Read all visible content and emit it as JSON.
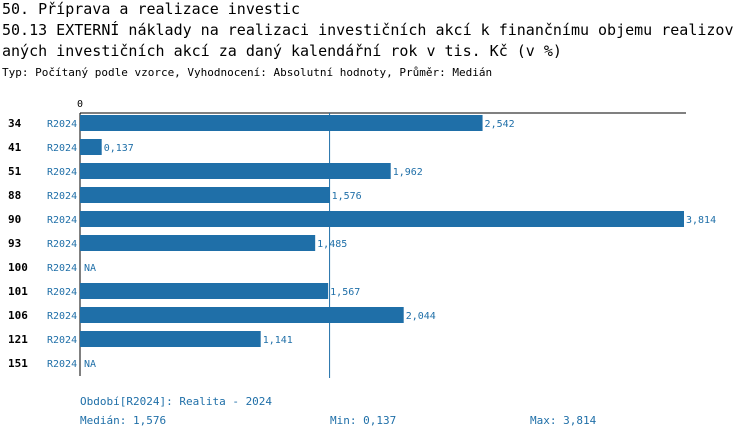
{
  "header": {
    "title1": "50. Příprava a realizace investic",
    "title2": "50.13 EXTERNÍ náklady na realizaci investičních akcí k finančnímu objemu realizov",
    "title3": "aných investičních akcí za daný kalendářní rok v tis. Kč (v %)",
    "subtitle": "Typ: Počítaný podle vzorce, Vyhodnocení: Absolutní hodnoty, Průměr: Medián"
  },
  "chart_data": {
    "type": "bar",
    "orientation": "horizontal",
    "categories": [
      "34",
      "41",
      "51",
      "88",
      "90",
      "93",
      "100",
      "101",
      "106",
      "121",
      "151"
    ],
    "period_labels": [
      "R2024",
      "R2024",
      "R2024",
      "R2024",
      "R2024",
      "R2024",
      "R2024",
      "R2024",
      "R2024",
      "R2024",
      "R2024"
    ],
    "values": [
      2.542,
      0.137,
      1.962,
      1.576,
      3.814,
      1.485,
      null,
      1.567,
      2.044,
      1.141,
      null
    ],
    "value_labels": [
      "2,542",
      "0,137",
      "1,962",
      "1,576",
      "3,814",
      "1,485",
      "NA",
      "1,567",
      "2,044",
      "1,141",
      "NA"
    ],
    "axis_zero_label": "0",
    "xlim": [
      0,
      3.814
    ],
    "median": 1.576,
    "colors": {
      "bar": "#1f6fa8",
      "median_line": "#1f6fa8",
      "text": "#1f6fa8"
    }
  },
  "footer": {
    "period": "Období[R2024]: Realita - 2024",
    "median": "Medián: 1,576",
    "min": "Min: 0,137",
    "max": "Max: 3,814"
  }
}
